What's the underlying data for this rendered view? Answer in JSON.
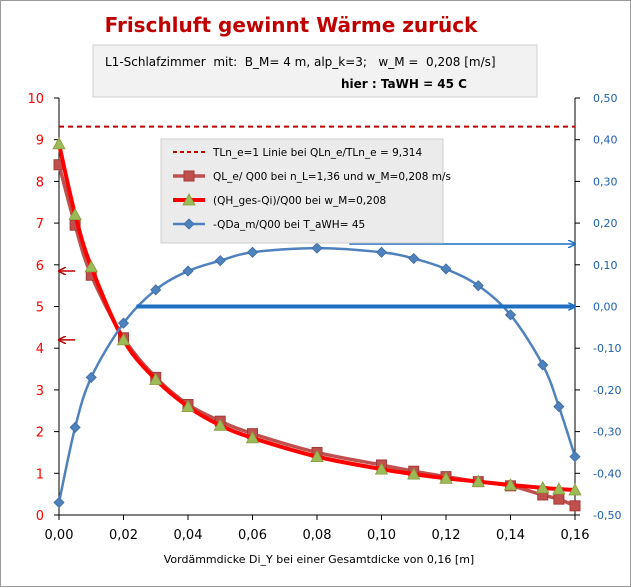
{
  "chart_data": {
    "type": "line",
    "title": "Frischluft gewinnt Wärme zurück",
    "info_line1": "L1-Schlafzimmer  mit:  B_M= 4 m, alp_k=3;   w_M =  0,208 [m/s]",
    "info_line2": "hier :  TaWH = 45   C",
    "xlabel": "Vordämmdicke Di_Y  bei einer Gesamtdicke von 0,16 [m]",
    "xlim": [
      0,
      0.16
    ],
    "ylim_left": [
      0,
      10
    ],
    "ylim_right": [
      -0.5,
      0.5
    ],
    "x_ticks": [
      0,
      0.02,
      0.04,
      0.06,
      0.08,
      0.1,
      0.12,
      0.14,
      0.16
    ],
    "x_tick_labels": [
      "0,00",
      "0,02",
      "0,04",
      "0,06",
      "0,08",
      "0,10",
      "0,12",
      "0,14",
      "0,16"
    ],
    "y_left_ticks": [
      0,
      1,
      2,
      3,
      4,
      5,
      6,
      7,
      8,
      9,
      10
    ],
    "y_left_tick_labels": [
      "0",
      "1",
      "2",
      "3",
      "4",
      "5",
      "6",
      "7",
      "8",
      "9",
      "10"
    ],
    "y_right_ticks": [
      -0.5,
      -0.4,
      -0.3,
      -0.2,
      -0.1,
      0,
      0.1,
      0.2,
      0.3,
      0.4,
      0.5
    ],
    "y_right_tick_labels": [
      "-0,50",
      "-0,40",
      "-0,30",
      "-0,20",
      "-0,10",
      "0,00",
      "0,10",
      "0,20",
      "0,30",
      "0,40",
      "0,50"
    ],
    "legend_position": "top-center",
    "series": [
      {
        "name": "TLn_e=1  Linie bei QLn_e/TLn_e   = 9,314",
        "axis": "left",
        "color": "#c00000",
        "style": "dashed",
        "x": [
          0,
          0.16
        ],
        "y": [
          9.314,
          9.314
        ]
      },
      {
        "name": "QL_e/ Q00 bei n_L=1,36 und  w_M=0,208 m/s",
        "axis": "left",
        "color": "#c0504d",
        "marker": "square",
        "x": [
          0,
          0.005,
          0.01,
          0.02,
          0.03,
          0.04,
          0.05,
          0.06,
          0.08,
          0.1,
          0.11,
          0.12,
          0.13,
          0.14,
          0.15,
          0.155,
          0.16
        ],
        "y": [
          8.4,
          6.95,
          5.75,
          4.25,
          3.3,
          2.65,
          2.25,
          1.95,
          1.5,
          1.2,
          1.05,
          0.92,
          0.8,
          0.7,
          0.48,
          0.38,
          0.22
        ]
      },
      {
        "name": "(QH_ges-Qi)/Q00 bei w_M=0,208",
        "axis": "left",
        "color": "#ff0000",
        "marker": "triangle",
        "x": [
          0,
          0.005,
          0.01,
          0.02,
          0.03,
          0.04,
          0.05,
          0.06,
          0.08,
          0.1,
          0.11,
          0.12,
          0.13,
          0.14,
          0.15,
          0.155,
          0.16
        ],
        "y": [
          8.9,
          7.2,
          5.95,
          4.2,
          3.25,
          2.6,
          2.15,
          1.85,
          1.4,
          1.1,
          0.98,
          0.88,
          0.8,
          0.72,
          0.65,
          0.62,
          0.6
        ]
      },
      {
        "name": "-QDa_m/Q00 bei T_aWH= 45",
        "axis": "right",
        "color": "#4f81bd",
        "marker": "diamond",
        "x": [
          0,
          0.005,
          0.01,
          0.02,
          0.03,
          0.04,
          0.05,
          0.06,
          0.08,
          0.1,
          0.11,
          0.12,
          0.13,
          0.14,
          0.15,
          0.155,
          0.16
        ],
        "y": [
          -0.47,
          -0.29,
          -0.17,
          -0.04,
          0.04,
          0.085,
          0.11,
          0.13,
          0.14,
          0.13,
          0.115,
          0.09,
          0.05,
          -0.02,
          -0.14,
          -0.24,
          -0.36
        ]
      }
    ],
    "annotation_arrows": [
      {
        "axis": "left",
        "direction": "left",
        "x_from": 0.005,
        "x_to": 0,
        "y": 5.85,
        "color": "#c00000"
      },
      {
        "axis": "left",
        "direction": "left",
        "x_from": 0.005,
        "x_to": 0,
        "y": 4.2,
        "color": "#c00000"
      },
      {
        "axis": "right",
        "direction": "right",
        "x_from": 0.09,
        "x_to": 0.16,
        "y": 0.15,
        "color": "#1f6fc0"
      },
      {
        "axis": "right",
        "direction": "right",
        "x_from": 0.024,
        "x_to": 0.16,
        "y": 0.0,
        "color": "#1f6fc0"
      }
    ]
  }
}
